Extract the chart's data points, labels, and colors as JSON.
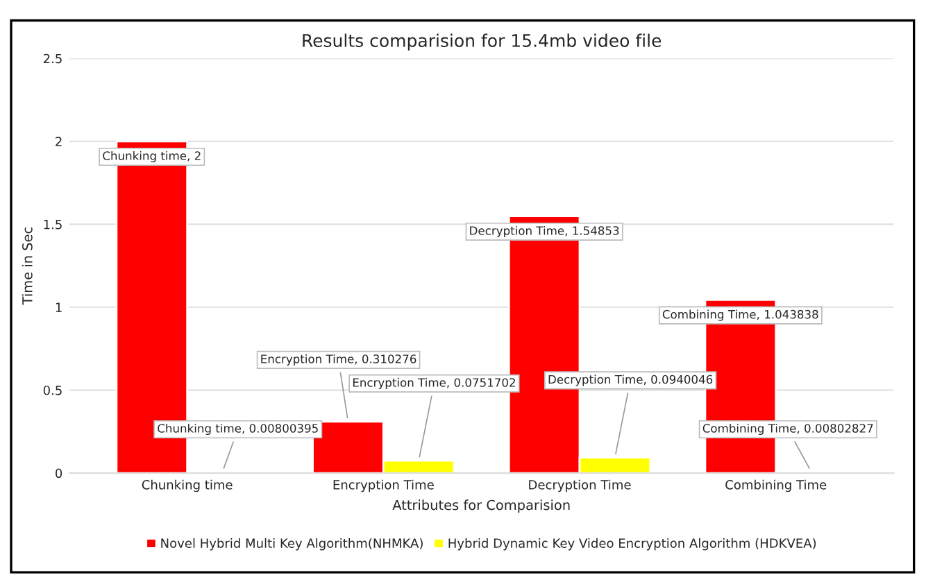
{
  "chart_data": {
    "type": "bar",
    "title": "Results comparision for 15.4mb video file",
    "xlabel": "Attributes for Comparision",
    "ylabel": "Time in Sec",
    "categories": [
      "Chunking time",
      "Encryption Time",
      "Decryption Time",
      "Combining Time"
    ],
    "series": [
      {
        "name": "Novel Hybrid Multi Key Algorithm(NHMKA)",
        "color": "#ff0000",
        "values": [
          2,
          0.310276,
          1.54853,
          1.043838
        ],
        "value_labels": [
          "Chunking time, 2",
          "Encryption Time, 0.310276",
          "Decryption Time, 1.54853",
          "Combining Time, 1.043838"
        ]
      },
      {
        "name": "Hybrid Dynamic Key Video Encryption Algorithm (HDKVEA)",
        "color": "#ffff00",
        "values": [
          0.00800395,
          0.0751702,
          0.0940046,
          0.00802827
        ],
        "value_labels": [
          "Chunking time, 0.00800395",
          "Encryption Time, 0.0751702",
          "Decryption Time, 0.0940046",
          "Combining Time, 0.00802827"
        ]
      }
    ],
    "ylim": [
      0,
      2.5
    ],
    "yticks": [
      0,
      0.5,
      1,
      1.5,
      2,
      2.5
    ],
    "grid": "y",
    "legend": "bottom"
  }
}
